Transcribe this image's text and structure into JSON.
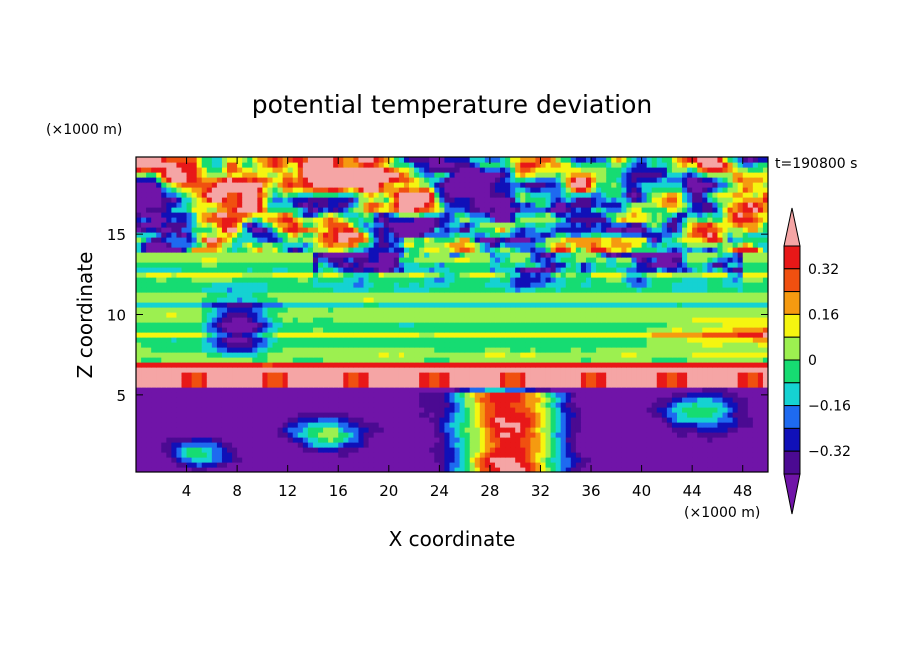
{
  "chart_data": {
    "type": "heatmap",
    "title": "potential temperature deviation",
    "time_label": "t=190800 s",
    "xlabel": "X coordinate",
    "ylabel": "Z coordinate",
    "x_unit": "(×1000 m)",
    "y_unit": "(×1000 m)",
    "xlim": [
      0,
      50
    ],
    "ylim": [
      0.2,
      19.8
    ],
    "x_ticks": [
      4,
      8,
      12,
      16,
      20,
      24,
      28,
      32,
      36,
      40,
      44,
      48
    ],
    "y_ticks": [
      5,
      10,
      15
    ],
    "colorbar": {
      "levels": [
        -0.4,
        -0.32,
        -0.24,
        -0.16,
        -0.08,
        0,
        0.08,
        0.16,
        0.24,
        0.32,
        0.4
      ],
      "labeled_levels": [
        "0.32",
        "0.16",
        "0",
        "-0.16",
        "-0.32"
      ],
      "colors": [
        "#7014a8",
        "#4b0a92",
        "#1010b8",
        "#1e6af0",
        "#15d2d2",
        "#16dc72",
        "#9cf050",
        "#f5f510",
        "#f59a10",
        "#f05010",
        "#e81818",
        "#f5a5a5"
      ],
      "extend": "both"
    },
    "field_zones": [
      {
        "z_range": [
          0.2,
          6.5
        ],
        "dominant": "mixed: violet cold pools with warm pink/orange plumes near x=26-34"
      },
      {
        "z_range": [
          6.5,
          13.8
        ],
        "dominant": "horizontal bands near zero (green/cyan/yellow)"
      },
      {
        "z_range": [
          13.8,
          19.8
        ],
        "dominant": "turbulent mix of pink, violet, orange and green patches"
      }
    ]
  }
}
